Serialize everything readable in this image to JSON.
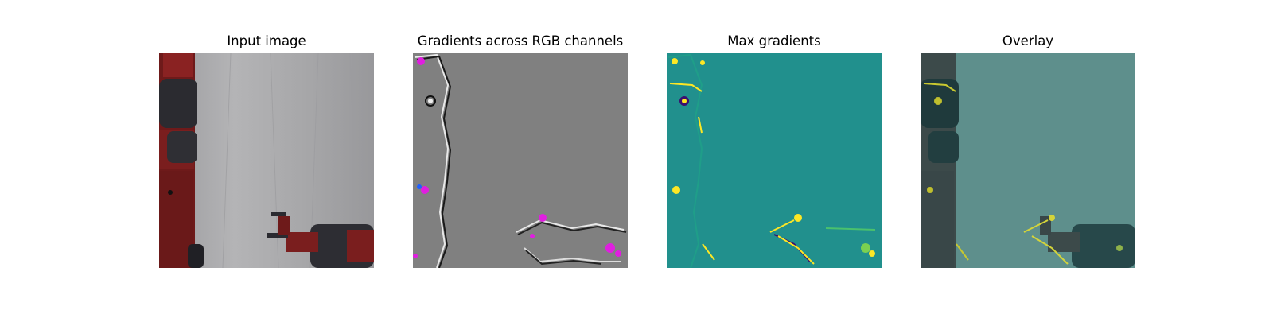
{
  "figure": {
    "panels": [
      {
        "title": "Input image"
      },
      {
        "title": "Gradients across RGB channels"
      },
      {
        "title": "Max gradients"
      },
      {
        "title": "Overlay"
      }
    ]
  },
  "colors": {
    "background": "#ffffff",
    "curtain_gray": "#a9a9ab",
    "robot_red": "#7a1e1e",
    "robot_dark": "#2b2b30",
    "gradient_gray": "#808080",
    "gradient_magenta": "#e01ee0",
    "viridis_teal": "#21908d",
    "viridis_yellow": "#fde725",
    "viridis_dark": "#3b0f70",
    "overlay_teal": "#5e8f8c"
  }
}
